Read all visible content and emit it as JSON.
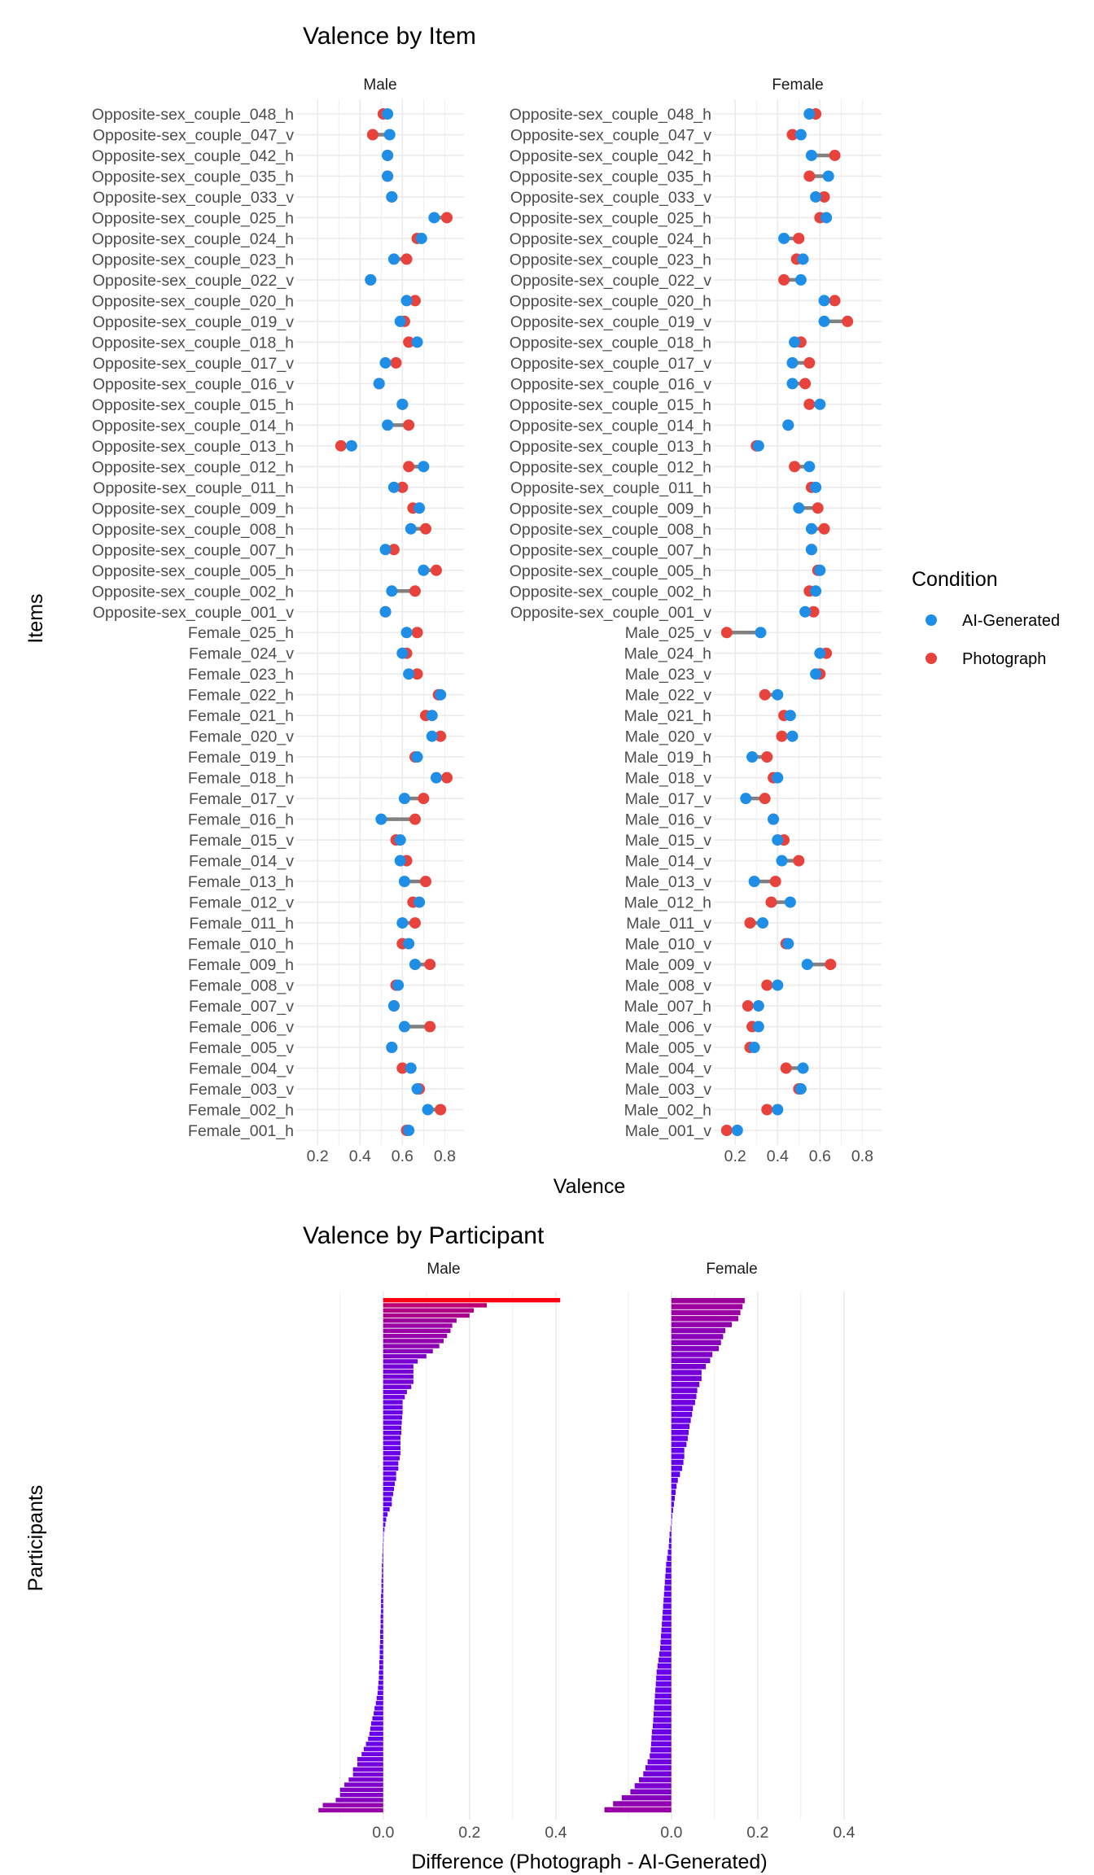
{
  "colors": {
    "ai": "#1E8EE6",
    "photo": "#E8423C",
    "segment": "#808080",
    "grid": "#EBEBEB",
    "bar_low": "#5A00FF",
    "bar_high": "#FF0010"
  },
  "chart_data": [
    {
      "type": "dumbbell",
      "title": "Valence by Item",
      "xlabel": "Valence",
      "ylabel": "Items",
      "xlim": [
        0.13,
        0.86
      ],
      "xticks": [
        "0.2",
        "0.4",
        "0.6",
        "0.8"
      ],
      "legend": {
        "title": "Condition",
        "position": "right",
        "entries": [
          "AI-Generated",
          "Photograph"
        ]
      },
      "panels": [
        {
          "name": "Male",
          "items": [
            {
              "label": "Opposite-sex_couple_048_h",
              "ai": 0.53,
              "photo": 0.51
            },
            {
              "label": "Opposite-sex_couple_047_v",
              "ai": 0.54,
              "photo": 0.46
            },
            {
              "label": "Opposite-sex_couple_042_h",
              "ai": 0.53,
              "photo": 0.53
            },
            {
              "label": "Opposite-sex_couple_035_h",
              "ai": 0.53,
              "photo": 0.53
            },
            {
              "label": "Opposite-sex_couple_033_v",
              "ai": 0.55,
              "photo": 0.55
            },
            {
              "label": "Opposite-sex_couple_025_h",
              "ai": 0.75,
              "photo": 0.81
            },
            {
              "label": "Opposite-sex_couple_024_h",
              "ai": 0.69,
              "photo": 0.67
            },
            {
              "label": "Opposite-sex_couple_023_h",
              "ai": 0.56,
              "photo": 0.62
            },
            {
              "label": "Opposite-sex_couple_022_v",
              "ai": 0.45,
              "photo": 0.45
            },
            {
              "label": "Opposite-sex_couple_020_h",
              "ai": 0.62,
              "photo": 0.66
            },
            {
              "label": "Opposite-sex_couple_019_v",
              "ai": 0.59,
              "photo": 0.61
            },
            {
              "label": "Opposite-sex_couple_018_h",
              "ai": 0.67,
              "photo": 0.63
            },
            {
              "label": "Opposite-sex_couple_017_v",
              "ai": 0.52,
              "photo": 0.57
            },
            {
              "label": "Opposite-sex_couple_016_v",
              "ai": 0.49,
              "photo": 0.49
            },
            {
              "label": "Opposite-sex_couple_015_h",
              "ai": 0.6,
              "photo": 0.6
            },
            {
              "label": "Opposite-sex_couple_014_h",
              "ai": 0.53,
              "photo": 0.63
            },
            {
              "label": "Opposite-sex_couple_013_h",
              "ai": 0.36,
              "photo": 0.31
            },
            {
              "label": "Opposite-sex_couple_012_h",
              "ai": 0.7,
              "photo": 0.63
            },
            {
              "label": "Opposite-sex_couple_011_h",
              "ai": 0.56,
              "photo": 0.6
            },
            {
              "label": "Opposite-sex_couple_009_h",
              "ai": 0.68,
              "photo": 0.65
            },
            {
              "label": "Opposite-sex_couple_008_h",
              "ai": 0.64,
              "photo": 0.71
            },
            {
              "label": "Opposite-sex_couple_007_h",
              "ai": 0.52,
              "photo": 0.56
            },
            {
              "label": "Opposite-sex_couple_005_h",
              "ai": 0.7,
              "photo": 0.76
            },
            {
              "label": "Opposite-sex_couple_002_h",
              "ai": 0.55,
              "photo": 0.66
            },
            {
              "label": "Opposite-sex_couple_001_v",
              "ai": 0.52,
              "photo": 0.52
            },
            {
              "label": "Female_025_h",
              "ai": 0.62,
              "photo": 0.67
            },
            {
              "label": "Female_024_v",
              "ai": 0.6,
              "photo": 0.62
            },
            {
              "label": "Female_023_h",
              "ai": 0.63,
              "photo": 0.67
            },
            {
              "label": "Female_022_h",
              "ai": 0.78,
              "photo": 0.77
            },
            {
              "label": "Female_021_h",
              "ai": 0.74,
              "photo": 0.71
            },
            {
              "label": "Female_020_v",
              "ai": 0.74,
              "photo": 0.78
            },
            {
              "label": "Female_019_h",
              "ai": 0.67,
              "photo": 0.66
            },
            {
              "label": "Female_018_h",
              "ai": 0.76,
              "photo": 0.81
            },
            {
              "label": "Female_017_v",
              "ai": 0.61,
              "photo": 0.7
            },
            {
              "label": "Female_016_h",
              "ai": 0.5,
              "photo": 0.66
            },
            {
              "label": "Female_015_v",
              "ai": 0.59,
              "photo": 0.57
            },
            {
              "label": "Female_014_v",
              "ai": 0.59,
              "photo": 0.62
            },
            {
              "label": "Female_013_h",
              "ai": 0.61,
              "photo": 0.71
            },
            {
              "label": "Female_012_v",
              "ai": 0.68,
              "photo": 0.65
            },
            {
              "label": "Female_011_h",
              "ai": 0.6,
              "photo": 0.66
            },
            {
              "label": "Female_010_h",
              "ai": 0.63,
              "photo": 0.6
            },
            {
              "label": "Female_009_h",
              "ai": 0.66,
              "photo": 0.73
            },
            {
              "label": "Female_008_v",
              "ai": 0.58,
              "photo": 0.57
            },
            {
              "label": "Female_007_v",
              "ai": 0.56,
              "photo": 0.56
            },
            {
              "label": "Female_006_v",
              "ai": 0.61,
              "photo": 0.73
            },
            {
              "label": "Female_005_v",
              "ai": 0.55,
              "photo": 0.55
            },
            {
              "label": "Female_004_v",
              "ai": 0.64,
              "photo": 0.6
            },
            {
              "label": "Female_003_v",
              "ai": 0.67,
              "photo": 0.68
            },
            {
              "label": "Female_002_h",
              "ai": 0.72,
              "photo": 0.78
            },
            {
              "label": "Female_001_h",
              "ai": 0.63,
              "photo": 0.62
            }
          ]
        },
        {
          "name": "Female",
          "items": [
            {
              "label": "Opposite-sex_couple_048_h",
              "ai": 0.55,
              "photo": 0.58
            },
            {
              "label": "Opposite-sex_couple_047_v",
              "ai": 0.51,
              "photo": 0.47
            },
            {
              "label": "Opposite-sex_couple_042_h",
              "ai": 0.56,
              "photo": 0.67
            },
            {
              "label": "Opposite-sex_couple_035_h",
              "ai": 0.64,
              "photo": 0.55
            },
            {
              "label": "Opposite-sex_couple_033_v",
              "ai": 0.58,
              "photo": 0.62
            },
            {
              "label": "Opposite-sex_couple_025_h",
              "ai": 0.63,
              "photo": 0.6
            },
            {
              "label": "Opposite-sex_couple_024_h",
              "ai": 0.43,
              "photo": 0.5
            },
            {
              "label": "Opposite-sex_couple_023_h",
              "ai": 0.52,
              "photo": 0.49
            },
            {
              "label": "Opposite-sex_couple_022_v",
              "ai": 0.51,
              "photo": 0.43
            },
            {
              "label": "Opposite-sex_couple_020_h",
              "ai": 0.62,
              "photo": 0.67
            },
            {
              "label": "Opposite-sex_couple_019_v",
              "ai": 0.62,
              "photo": 0.73
            },
            {
              "label": "Opposite-sex_couple_018_h",
              "ai": 0.48,
              "photo": 0.51
            },
            {
              "label": "Opposite-sex_couple_017_v",
              "ai": 0.47,
              "photo": 0.55
            },
            {
              "label": "Opposite-sex_couple_016_v",
              "ai": 0.47,
              "photo": 0.53
            },
            {
              "label": "Opposite-sex_couple_015_h",
              "ai": 0.6,
              "photo": 0.55
            },
            {
              "label": "Opposite-sex_couple_014_h",
              "ai": 0.45,
              "photo": 0.45
            },
            {
              "label": "Opposite-sex_couple_013_h",
              "ai": 0.31,
              "photo": 0.3
            },
            {
              "label": "Opposite-sex_couple_012_h",
              "ai": 0.55,
              "photo": 0.48
            },
            {
              "label": "Opposite-sex_couple_011_h",
              "ai": 0.58,
              "photo": 0.56
            },
            {
              "label": "Opposite-sex_couple_009_h",
              "ai": 0.5,
              "photo": 0.59
            },
            {
              "label": "Opposite-sex_couple_008_h",
              "ai": 0.56,
              "photo": 0.62
            },
            {
              "label": "Opposite-sex_couple_007_h",
              "ai": 0.56,
              "photo": 0.56
            },
            {
              "label": "Opposite-sex_couple_005_h",
              "ai": 0.6,
              "photo": 0.59
            },
            {
              "label": "Opposite-sex_couple_002_h",
              "ai": 0.58,
              "photo": 0.55
            },
            {
              "label": "Opposite-sex_couple_001_v",
              "ai": 0.53,
              "photo": 0.57
            },
            {
              "label": "Male_025_v",
              "ai": 0.32,
              "photo": 0.16
            },
            {
              "label": "Male_024_h",
              "ai": 0.6,
              "photo": 0.63
            },
            {
              "label": "Male_023_v",
              "ai": 0.58,
              "photo": 0.6
            },
            {
              "label": "Male_022_v",
              "ai": 0.4,
              "photo": 0.34
            },
            {
              "label": "Male_021_h",
              "ai": 0.46,
              "photo": 0.43
            },
            {
              "label": "Male_020_v",
              "ai": 0.47,
              "photo": 0.42
            },
            {
              "label": "Male_019_h",
              "ai": 0.28,
              "photo": 0.35
            },
            {
              "label": "Male_018_v",
              "ai": 0.4,
              "photo": 0.38
            },
            {
              "label": "Male_017_v",
              "ai": 0.25,
              "photo": 0.34
            },
            {
              "label": "Male_016_v",
              "ai": 0.38,
              "photo": 0.38
            },
            {
              "label": "Male_015_v",
              "ai": 0.4,
              "photo": 0.43
            },
            {
              "label": "Male_014_v",
              "ai": 0.42,
              "photo": 0.5
            },
            {
              "label": "Male_013_v",
              "ai": 0.29,
              "photo": 0.39
            },
            {
              "label": "Male_012_h",
              "ai": 0.46,
              "photo": 0.37
            },
            {
              "label": "Male_011_v",
              "ai": 0.33,
              "photo": 0.27
            },
            {
              "label": "Male_010_v",
              "ai": 0.45,
              "photo": 0.44
            },
            {
              "label": "Male_009_v",
              "ai": 0.54,
              "photo": 0.65
            },
            {
              "label": "Male_008_v",
              "ai": 0.4,
              "photo": 0.35
            },
            {
              "label": "Male_007_h",
              "ai": 0.31,
              "photo": 0.26
            },
            {
              "label": "Male_006_v",
              "ai": 0.31,
              "photo": 0.28
            },
            {
              "label": "Male_005_v",
              "ai": 0.29,
              "photo": 0.27
            },
            {
              "label": "Male_004_v",
              "ai": 0.52,
              "photo": 0.44
            },
            {
              "label": "Male_003_v",
              "ai": 0.51,
              "photo": 0.5
            },
            {
              "label": "Male_002_h",
              "ai": 0.4,
              "photo": 0.35
            },
            {
              "label": "Male_001_v",
              "ai": 0.21,
              "photo": 0.16
            }
          ]
        }
      ]
    },
    {
      "type": "bar",
      "orientation": "horizontal",
      "title": "Valence by Participant",
      "xlabel": "Difference (Photograph - AI-Generated)",
      "ylabel": "Participants",
      "xlim": [
        -0.19,
        0.47
      ],
      "xticks": [
        "0.0",
        "0.2",
        "0.4"
      ],
      "panels": [
        {
          "name": "Male",
          "values": [
            0.41,
            0.24,
            0.21,
            0.2,
            0.17,
            0.16,
            0.156,
            0.148,
            0.14,
            0.13,
            0.115,
            0.1,
            0.08,
            0.07,
            0.07,
            0.07,
            0.07,
            0.065,
            0.055,
            0.05,
            0.045,
            0.045,
            0.045,
            0.044,
            0.043,
            0.042,
            0.042,
            0.04,
            0.04,
            0.04,
            0.04,
            0.038,
            0.035,
            0.035,
            0.03,
            0.03,
            0.027,
            0.025,
            0.023,
            0.02,
            0.02,
            0.015,
            0.01,
            0.007,
            0.005,
            0.003,
            0.001,
            0.0,
            -0.001,
            -0.001,
            -0.002,
            -0.002,
            -0.003,
            -0.003,
            -0.003,
            -0.004,
            -0.004,
            -0.004,
            -0.005,
            -0.005,
            -0.005,
            -0.005,
            -0.006,
            -0.006,
            -0.006,
            -0.007,
            -0.007,
            -0.007,
            -0.008,
            -0.008,
            -0.008,
            -0.009,
            -0.009,
            -0.01,
            -0.01,
            -0.011,
            -0.012,
            -0.013,
            -0.015,
            -0.017,
            -0.02,
            -0.022,
            -0.025,
            -0.028,
            -0.03,
            -0.032,
            -0.035,
            -0.04,
            -0.045,
            -0.05,
            -0.06,
            -0.06,
            -0.07,
            -0.07,
            -0.08,
            -0.09,
            -0.1,
            -0.1,
            -0.11,
            -0.14,
            -0.15
          ]
        },
        {
          "name": "Female",
          "values": [
            0.17,
            0.165,
            0.16,
            0.155,
            0.14,
            0.125,
            0.12,
            0.115,
            0.11,
            0.095,
            0.09,
            0.08,
            0.07,
            0.07,
            0.065,
            0.06,
            0.058,
            0.055,
            0.05,
            0.048,
            0.045,
            0.042,
            0.04,
            0.038,
            0.035,
            0.03,
            0.03,
            0.028,
            0.025,
            0.02,
            0.015,
            0.012,
            0.01,
            0.008,
            0.006,
            0.004,
            0.002,
            0.0,
            -0.002,
            -0.004,
            -0.005,
            -0.006,
            -0.008,
            -0.01,
            -0.012,
            -0.013,
            -0.014,
            -0.015,
            -0.016,
            -0.017,
            -0.018,
            -0.019,
            -0.02,
            -0.021,
            -0.022,
            -0.023,
            -0.024,
            -0.025,
            -0.026,
            -0.028,
            -0.03,
            -0.032,
            -0.034,
            -0.035,
            -0.036,
            -0.037,
            -0.038,
            -0.039,
            -0.04,
            -0.041,
            -0.042,
            -0.043,
            -0.045,
            -0.046,
            -0.047,
            -0.048,
            -0.05,
            -0.055,
            -0.06,
            -0.065,
            -0.075,
            -0.085,
            -0.095,
            -0.115,
            -0.135,
            -0.155
          ]
        }
      ]
    }
  ]
}
